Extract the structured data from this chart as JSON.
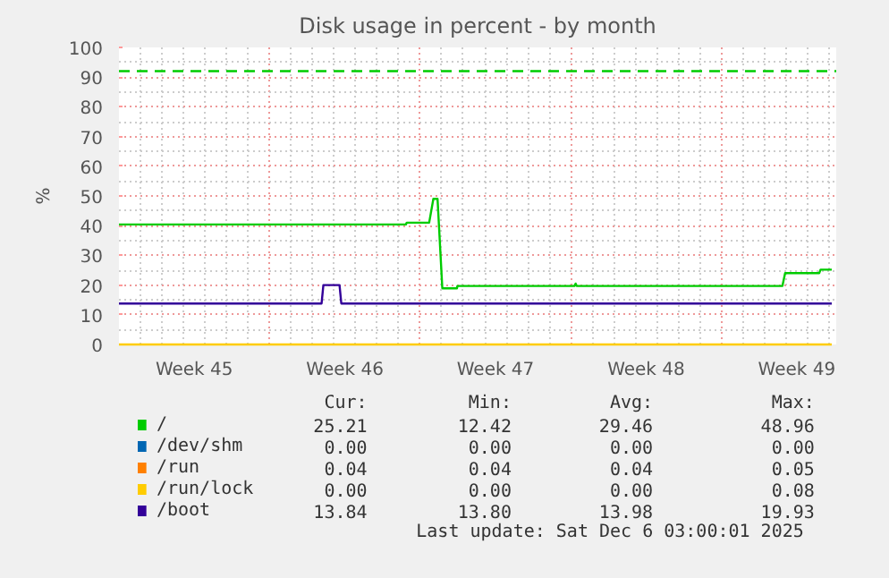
{
  "chart_data": {
    "type": "line",
    "title": "Disk usage in percent - by month",
    "ylabel": "%",
    "xlim": [
      "2025-11-03",
      "2025-12-06T08:00"
    ],
    "xticks": [
      {
        "value": "2025-11-06T12:00",
        "label": "Week 45"
      },
      {
        "value": "2025-11-10",
        "label": null
      },
      {
        "value": "2025-11-13T12:00",
        "label": "Week 46"
      },
      {
        "value": "2025-11-17",
        "label": null
      },
      {
        "value": "2025-11-20T12:00",
        "label": "Week 47"
      },
      {
        "value": "2025-11-24",
        "label": null
      },
      {
        "value": "2025-11-27T12:00",
        "label": "Week 48"
      },
      {
        "value": "2025-12-01",
        "label": null
      },
      {
        "value": "2025-12-04T12:00",
        "label": "Week 49"
      }
    ],
    "ylim": [
      0,
      100
    ],
    "yticks": [
      0,
      10,
      20,
      30,
      40,
      50,
      60,
      70,
      80,
      90,
      100
    ],
    "grid": true,
    "legend": "bottom",
    "series": [
      {
        "name": "/",
        "color": "#00cc00",
        "x": [
          "2025-11-03",
          "2025-11-16T08:00",
          "2025-11-16T09:00",
          "2025-11-17T10:00",
          "2025-11-17T14:40",
          "2025-11-17T19:20",
          "2025-11-18T00:40",
          "2025-11-18T17:00",
          "2025-11-18T17:30",
          "2025-11-24T04:00",
          "2025-11-24T05:20",
          "2025-11-24T06:30",
          "2025-12-03T20:00",
          "2025-12-03T23:00",
          "2025-12-05T13:00",
          "2025-12-05T14:30",
          "2025-12-06T03:00"
        ],
        "values": [
          40.4,
          40.4,
          41,
          41,
          49,
          49,
          18.9,
          18.9,
          19.7,
          19.7,
          20.5,
          19.7,
          19.7,
          24,
          24,
          25.2,
          25.2
        ]
      },
      {
        "name": "/dev/shm",
        "color": "#0066b3",
        "values": [
          null
        ]
      },
      {
        "name": "/run",
        "color": "#ff8000",
        "values": [
          null
        ]
      },
      {
        "name": "/run/lock",
        "color": "#ffcc00",
        "x": [
          "2025-11-03",
          "2025-12-06T03:00"
        ],
        "values": [
          0,
          0
        ]
      },
      {
        "name": "/boot",
        "color": "#330099",
        "x": [
          "2025-11-03",
          "2025-11-12T10:00",
          "2025-11-12T12:00",
          "2025-11-13T06:00",
          "2025-11-13T08:00",
          "2025-12-06T03:00"
        ],
        "values": [
          13.8,
          13.8,
          20,
          20,
          13.8,
          13.8
        ]
      }
    ],
    "ref_lines": [
      {
        "axis": "y",
        "value": 92,
        "label": null,
        "color": "#00cc00",
        "line_style": "dashed"
      }
    ],
    "annotations": [
      "Cur:",
      "Min:",
      "Avg:",
      "Max:",
      "25.21",
      "12.42",
      "29.46",
      "48.96",
      "0.00",
      "0.00",
      "0.00",
      "0.00",
      "0.04",
      "0.04",
      "0.04",
      "0.05",
      "0.00",
      "0.00",
      "0.00",
      "0.08",
      "13.84",
      "13.80",
      "13.98",
      "19.93",
      "Last update: Sat Dec  6 03:00:01 2025"
    ]
  }
}
